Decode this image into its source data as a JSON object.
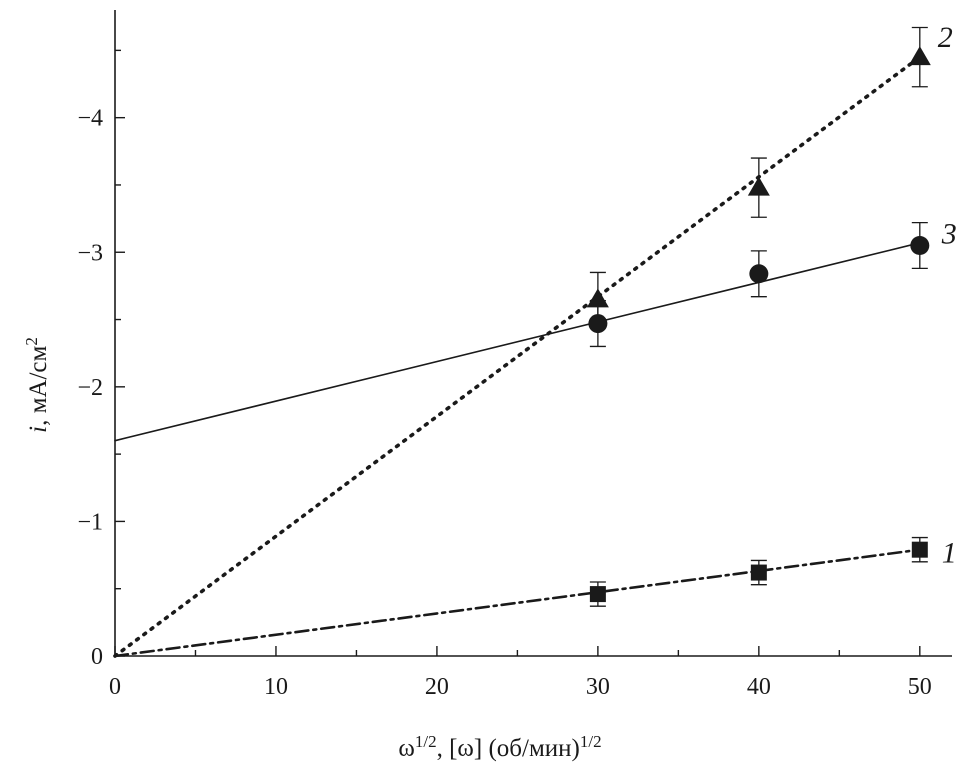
{
  "chart_data": {
    "type": "scatter",
    "x_axis": {
      "label_base": "ω",
      "label_sup1": "1/2",
      "label_rest": ", [ω] (об/мин)",
      "label_sup2": "1/2",
      "range": [
        0,
        52
      ],
      "ticks": [
        0,
        10,
        20,
        30,
        40,
        50
      ],
      "tick_labels": [
        "0",
        "10",
        "20",
        "30",
        "40",
        "50"
      ]
    },
    "y_axis": {
      "label_var": "i",
      "label_rest": ", мА/см",
      "label_sup": "2",
      "range": [
        0,
        -4.8
      ],
      "ticks": [
        0,
        -1,
        -2,
        -3,
        -4
      ],
      "tick_labels": [
        "0",
        "−1",
        "−2",
        "−3",
        "−4"
      ]
    },
    "grid": false,
    "series": [
      {
        "label": "1",
        "marker": "square",
        "line_style": "dash-dot",
        "x": [
          30,
          40,
          50
        ],
        "y": [
          -0.46,
          -0.62,
          -0.79
        ],
        "error": [
          0.09,
          0.09,
          0.09
        ],
        "fit_line": [
          [
            0,
            0
          ],
          [
            50,
            -0.79
          ]
        ]
      },
      {
        "label": "2",
        "marker": "triangle",
        "line_style": "dotted",
        "x": [
          30,
          40,
          50
        ],
        "y": [
          -2.65,
          -3.48,
          -4.45
        ],
        "error": [
          0.2,
          0.22,
          0.22
        ],
        "fit_line": [
          [
            0,
            0
          ],
          [
            50,
            -4.45
          ]
        ]
      },
      {
        "label": "3",
        "marker": "circle",
        "line_style": "solid",
        "x": [
          30,
          40,
          50
        ],
        "y": [
          -2.47,
          -2.84,
          -3.05
        ],
        "error": [
          0.17,
          0.17,
          0.17
        ],
        "fit_line": [
          [
            0,
            -1.6
          ],
          [
            50,
            -3.07
          ]
        ]
      }
    ],
    "colors": {
      "ink": "#1a1a1a",
      "background": "#ffffff"
    }
  }
}
